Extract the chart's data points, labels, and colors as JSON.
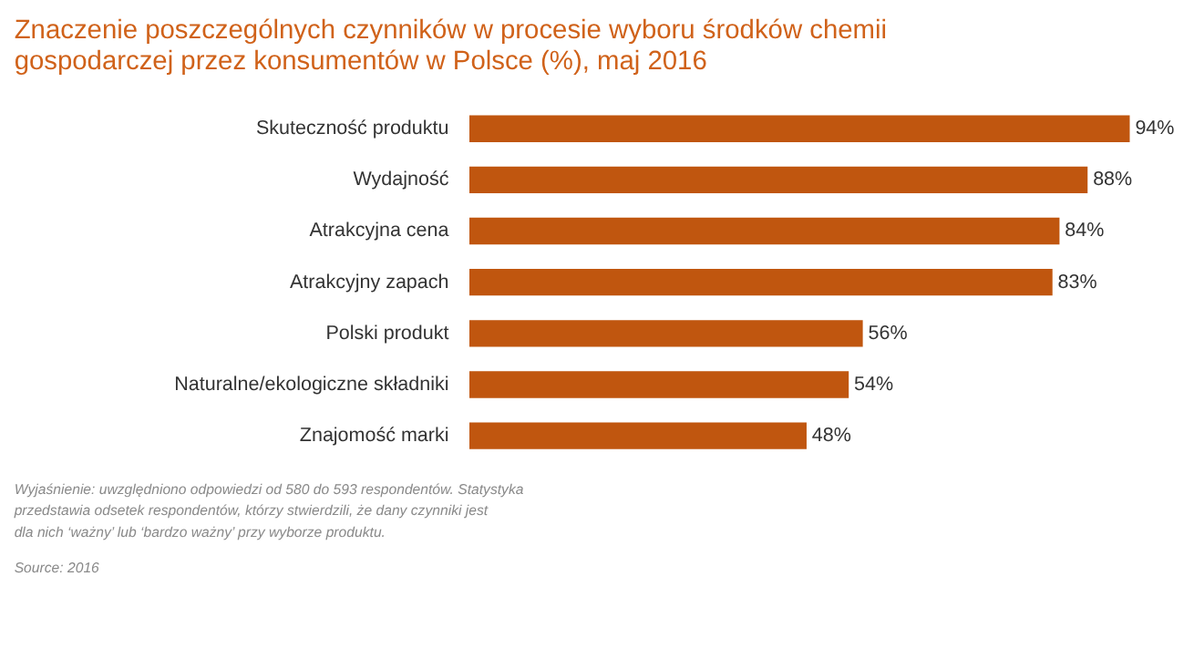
{
  "chart_data": {
    "type": "bar",
    "orientation": "horizontal",
    "title": [
      "Znaczenie poszczególnych czynników w procesie wyboru środków chemii",
      "gospodarczej przez konsumentów w Polsce (%), maj 2016"
    ],
    "categories": [
      "Skuteczność produktu",
      "Wydajność",
      "Atrakcyjna cena",
      "Atrakcyjny zapach",
      "Polski produkt",
      "Naturalne/ekologiczne składniki",
      "Znajomość marki"
    ],
    "values": [
      94,
      88,
      84,
      83,
      56,
      54,
      48
    ],
    "value_labels": [
      "94%",
      "88%",
      "84%",
      "83%",
      "56%",
      "54%",
      "48%"
    ],
    "color": "#c0560f",
    "grid": false,
    "annotations": [
      "Wyjaśnienie: uwzględniono odpowiedzi od 580 do 593 respondentów. Statystyka\nprzedstawia odsetek respondentów, którzy stwierdzili, że dany czynniki jest\ndla nich ‘ważny’ lub ‘bardzo ważny’ przy wyborze produktu.",
      "Source: 2016"
    ]
  }
}
